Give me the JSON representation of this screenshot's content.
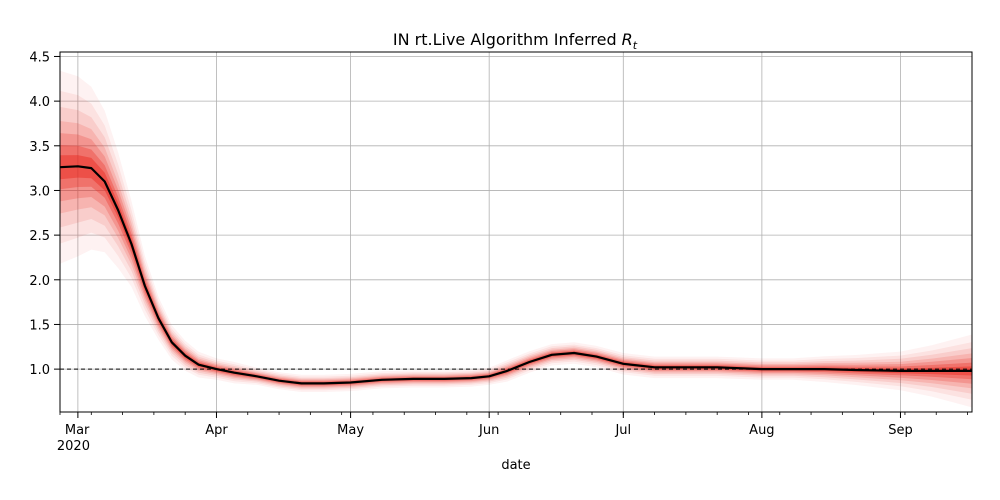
{
  "chart_data": {
    "type": "line",
    "title": "IN rt.Live Algorithm Inferred",
    "title_symbol": "R",
    "title_subscript": "t",
    "xlabel": "date",
    "ylabel": "",
    "x_ticks": [
      {
        "date": "2020-03-01",
        "label": "Mar",
        "sublabel": "2020"
      },
      {
        "date": "2020-04-01",
        "label": "Apr"
      },
      {
        "date": "2020-05-01",
        "label": "May"
      },
      {
        "date": "2020-06-01",
        "label": "Jun"
      },
      {
        "date": "2020-07-01",
        "label": "Jul"
      },
      {
        "date": "2020-08-01",
        "label": "Aug"
      },
      {
        "date": "2020-09-01",
        "label": "Sep"
      }
    ],
    "xlim": [
      "2020-02-26",
      "2020-09-17"
    ],
    "y_ticks": [
      "1.0",
      "1.5",
      "2.0",
      "2.5",
      "3.0",
      "3.5",
      "4.0",
      "4.5"
    ],
    "ylim": [
      0.52,
      4.55
    ],
    "grid": true,
    "reference_line": {
      "y": 1.0,
      "style": "dashed",
      "color": "#000000"
    },
    "colors": {
      "line": "#000000",
      "band": "#e8281e"
    },
    "series": [
      {
        "x": [
          "2020-02-26",
          "2020-03-01",
          "2020-03-04",
          "2020-03-07",
          "2020-03-10",
          "2020-03-13",
          "2020-03-16",
          "2020-03-19",
          "2020-03-22",
          "2020-03-25",
          "2020-03-28",
          "2020-04-01",
          "2020-04-05",
          "2020-04-10",
          "2020-04-15",
          "2020-04-20",
          "2020-04-25",
          "2020-05-01",
          "2020-05-08",
          "2020-05-15",
          "2020-05-22",
          "2020-05-28",
          "2020-06-01",
          "2020-06-05",
          "2020-06-10",
          "2020-06-15",
          "2020-06-20",
          "2020-06-25",
          "2020-07-01",
          "2020-07-08",
          "2020-07-15",
          "2020-07-22",
          "2020-08-01",
          "2020-08-08",
          "2020-08-15",
          "2020-08-22",
          "2020-09-01",
          "2020-09-08",
          "2020-09-17"
        ],
        "values": [
          3.26,
          3.27,
          3.25,
          3.1,
          2.78,
          2.4,
          1.93,
          1.57,
          1.3,
          1.15,
          1.05,
          1.0,
          0.96,
          0.92,
          0.87,
          0.84,
          0.84,
          0.85,
          0.88,
          0.89,
          0.89,
          0.9,
          0.92,
          0.98,
          1.08,
          1.16,
          1.18,
          1.14,
          1.06,
          1.02,
          1.02,
          1.02,
          1.0,
          1.0,
          1.0,
          0.99,
          0.98,
          0.98,
          0.98
        ],
        "band_halfwidth": [
          0.45,
          0.42,
          0.38,
          0.33,
          0.27,
          0.2,
          0.14,
          0.1,
          0.08,
          0.07,
          0.06,
          0.05,
          0.05,
          0.04,
          0.04,
          0.04,
          0.04,
          0.04,
          0.04,
          0.04,
          0.04,
          0.04,
          0.04,
          0.05,
          0.05,
          0.05,
          0.05,
          0.05,
          0.05,
          0.05,
          0.05,
          0.05,
          0.05,
          0.05,
          0.06,
          0.07,
          0.09,
          0.12,
          0.17
        ]
      }
    ]
  }
}
